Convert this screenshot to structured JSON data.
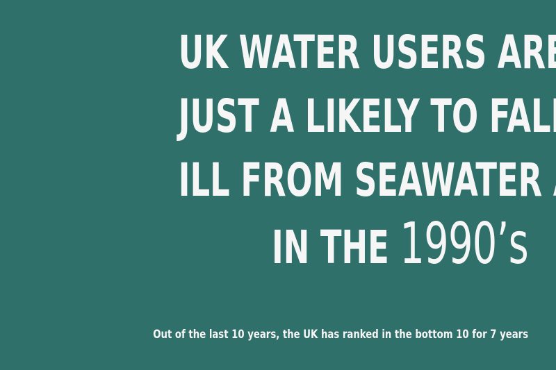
{
  "theme": {
    "background": "#30706b",
    "text_color": "#f6f6f6"
  },
  "headline": {
    "line1": "UK WATER USERS ARE",
    "line2": "JUST A LIKELY TO FALL",
    "line3": "ILL FROM SEAWATER AS",
    "line4_prefix": "IN THE ",
    "line4_emphasis": "1990’s"
  },
  "subtitle": "Out of the last 10 years, the UK has ranked in the bottom 10 for 7 years"
}
